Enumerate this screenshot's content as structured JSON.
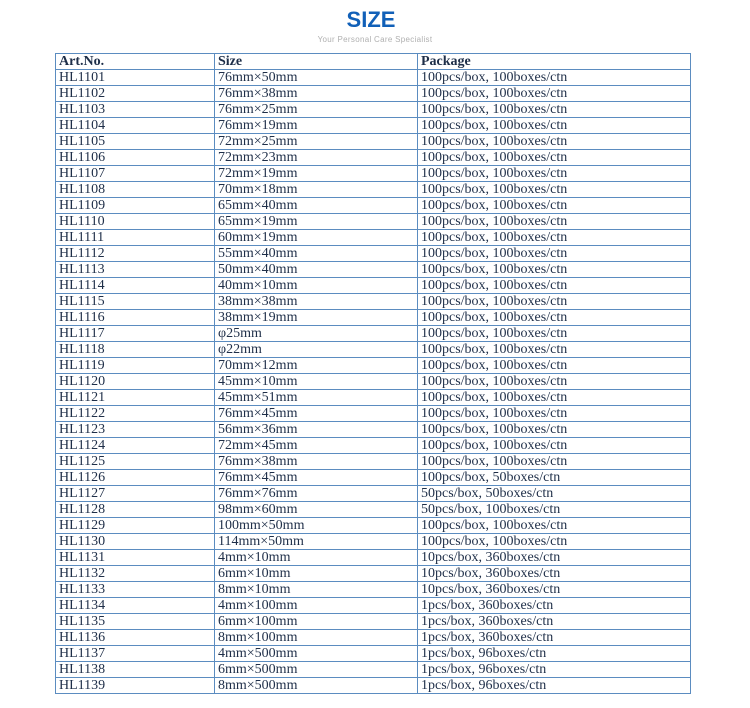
{
  "title": "SIZE",
  "subtitle": "Your Personal Care Specialist",
  "headers": [
    "Art.No.",
    "Size",
    "Package"
  ],
  "rows": [
    [
      "HL1101",
      "76mm×50mm",
      "100pcs/box, 100boxes/ctn"
    ],
    [
      "HL1102",
      "76mm×38mm",
      "100pcs/box, 100boxes/ctn"
    ],
    [
      "HL1103",
      "76mm×25mm",
      "100pcs/box, 100boxes/ctn"
    ],
    [
      "HL1104",
      "76mm×19mm",
      "100pcs/box, 100boxes/ctn"
    ],
    [
      "HL1105",
      "72mm×25mm",
      "100pcs/box, 100boxes/ctn"
    ],
    [
      "HL1106",
      "72mm×23mm",
      "100pcs/box, 100boxes/ctn"
    ],
    [
      "HL1107",
      "72mm×19mm",
      "100pcs/box, 100boxes/ctn"
    ],
    [
      "HL1108",
      "70mm×18mm",
      "100pcs/box, 100boxes/ctn"
    ],
    [
      "HL1109",
      "65mm×40mm",
      "100pcs/box, 100boxes/ctn"
    ],
    [
      "HL1110",
      "65mm×19mm",
      "100pcs/box, 100boxes/ctn"
    ],
    [
      "HL1111",
      "60mm×19mm",
      "100pcs/box, 100boxes/ctn"
    ],
    [
      "HL1112",
      "55mm×40mm",
      "100pcs/box, 100boxes/ctn"
    ],
    [
      "HL1113",
      "50mm×40mm",
      "100pcs/box, 100boxes/ctn"
    ],
    [
      "HL1114",
      "40mm×10mm",
      "100pcs/box, 100boxes/ctn"
    ],
    [
      "HL1115",
      "38mm×38mm",
      "100pcs/box, 100boxes/ctn"
    ],
    [
      "HL1116",
      "38mm×19mm",
      "100pcs/box, 100boxes/ctn"
    ],
    [
      "HL1117",
      "φ25mm",
      "100pcs/box, 100boxes/ctn"
    ],
    [
      "HL1118",
      "φ22mm",
      "100pcs/box, 100boxes/ctn"
    ],
    [
      "HL1119",
      "70mm×12mm",
      "100pcs/box, 100boxes/ctn"
    ],
    [
      "HL1120",
      "45mm×10mm",
      "100pcs/box, 100boxes/ctn"
    ],
    [
      "HL1121",
      "45mm×51mm",
      "100pcs/box, 100boxes/ctn"
    ],
    [
      "HL1122",
      "76mm×45mm",
      "100pcs/box, 100boxes/ctn"
    ],
    [
      "HL1123",
      "56mm×36mm",
      "100pcs/box, 100boxes/ctn"
    ],
    [
      "HL1124",
      "72mm×45mm",
      "100pcs/box, 100boxes/ctn"
    ],
    [
      "HL1125",
      "76mm×38mm",
      "100pcs/box, 100boxes/ctn"
    ],
    [
      "HL1126",
      "76mm×45mm",
      "100pcs/box, 50boxes/ctn"
    ],
    [
      "HL1127",
      "76mm×76mm",
      "50pcs/box, 50boxes/ctn"
    ],
    [
      "HL1128",
      "98mm×60mm",
      "50pcs/box, 100boxes/ctn"
    ],
    [
      "HL1129",
      "100mm×50mm",
      "100pcs/box, 100boxes/ctn"
    ],
    [
      "HL1130",
      "114mm×50mm",
      "100pcs/box, 100boxes/ctn"
    ],
    [
      "HL1131",
      "4mm×10mm",
      "10pcs/box, 360boxes/ctn"
    ],
    [
      "HL1132",
      "6mm×10mm",
      "10pcs/box, 360boxes/ctn"
    ],
    [
      "HL1133",
      "8mm×10mm",
      "10pcs/box, 360boxes/ctn"
    ],
    [
      "HL1134",
      "4mm×100mm",
      "1pcs/box, 360boxes/ctn"
    ],
    [
      "HL1135",
      "6mm×100mm",
      "1pcs/box, 360boxes/ctn"
    ],
    [
      "HL1136",
      "8mm×100mm",
      "1pcs/box, 360boxes/ctn"
    ],
    [
      "HL1137",
      "4mm×500mm",
      "1pcs/box, 96boxes/ctn"
    ],
    [
      "HL1138",
      "6mm×500mm",
      "1pcs/box, 96boxes/ctn"
    ],
    [
      "HL1139",
      "8mm×500mm",
      "1pcs/box, 96boxes/ctn"
    ]
  ]
}
